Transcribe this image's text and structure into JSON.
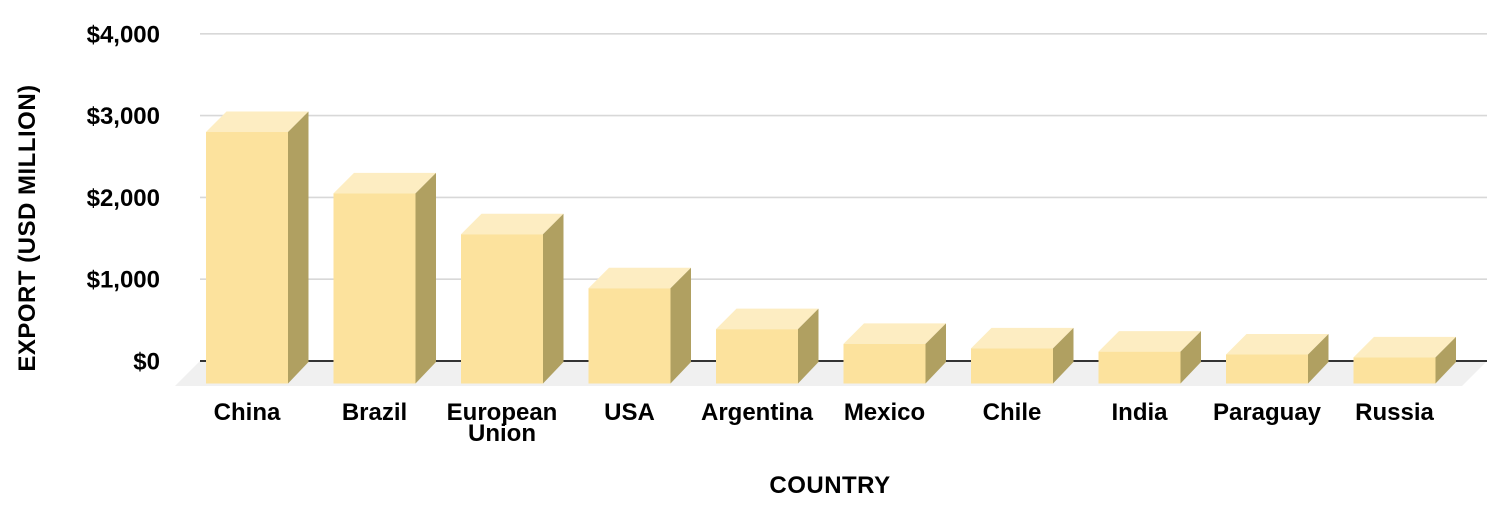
{
  "chart_data": {
    "type": "bar",
    "style": "3d-column",
    "title": "",
    "xlabel": "COUNTRY",
    "ylabel": "EXPORT (USD MILLION)",
    "categories": [
      "China",
      "Brazil",
      "European Union",
      "USA",
      "Argentina",
      "Mexico",
      "Chile",
      "India",
      "Paraguay",
      "Russia"
    ],
    "values": [
      3050,
      2300,
      1800,
      1140,
      640,
      460,
      405,
      365,
      330,
      295
    ],
    "series_name": "Export (USD Million)",
    "ylim": [
      0,
      4000
    ],
    "ytick_step": 1000,
    "ytick_labels": [
      "$0",
      "$1,000",
      "$2,000",
      "$3,000",
      "$4,000"
    ],
    "grid": true,
    "legend": false,
    "colors": {
      "bar_front": "#FCE29D",
      "bar_top": "#FDEDC2",
      "bar_side": "#B0A061",
      "gridline": "#D8D8D8",
      "baseline": "#333333",
      "floor": "#F0F0F0",
      "text": "#000000",
      "background": "#FFFFFF"
    }
  }
}
